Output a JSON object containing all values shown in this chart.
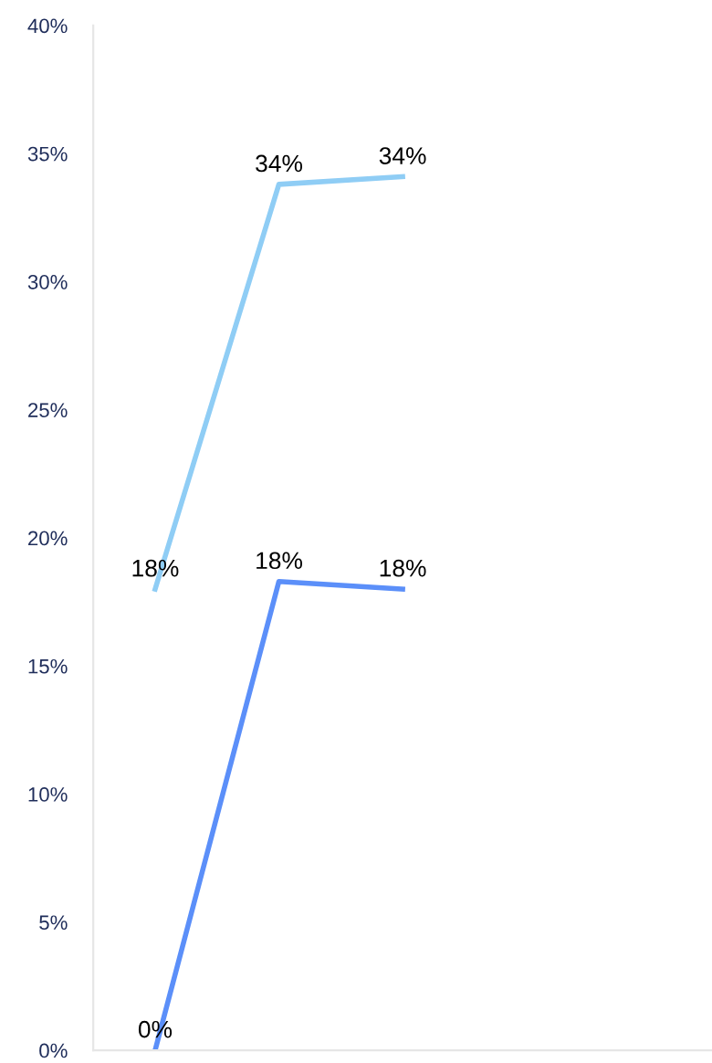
{
  "chart_data": {
    "type": "line",
    "categories": [
      null,
      null,
      null,
      null,
      null
    ],
    "series": [
      {
        "color": "#8fcdf5",
        "values": [
          18,
          33.8,
          34.1,
          null,
          null
        ],
        "value_labels": [
          "18%",
          "34%",
          "34%",
          null,
          null
        ]
      },
      {
        "color": "#5b8ff9",
        "values": [
          0,
          18.3,
          18,
          null,
          null
        ],
        "value_labels": [
          "0%",
          "18%",
          "18%",
          null,
          null
        ]
      }
    ],
    "ylim": [
      0,
      40
    ],
    "yticks": [
      {
        "value": 0,
        "label": "0%"
      },
      {
        "value": 5,
        "label": "5%"
      },
      {
        "value": 10,
        "label": "10%"
      },
      {
        "value": 15,
        "label": "15%"
      },
      {
        "value": 20,
        "label": "20%"
      },
      {
        "value": 25,
        "label": "25%"
      },
      {
        "value": 30,
        "label": "30%"
      },
      {
        "value": 35,
        "label": "35%"
      },
      {
        "value": 40,
        "label": "40%"
      }
    ],
    "tick_labels": "y",
    "grid": false,
    "legend": false,
    "marker": "none",
    "line_style": "solid"
  }
}
